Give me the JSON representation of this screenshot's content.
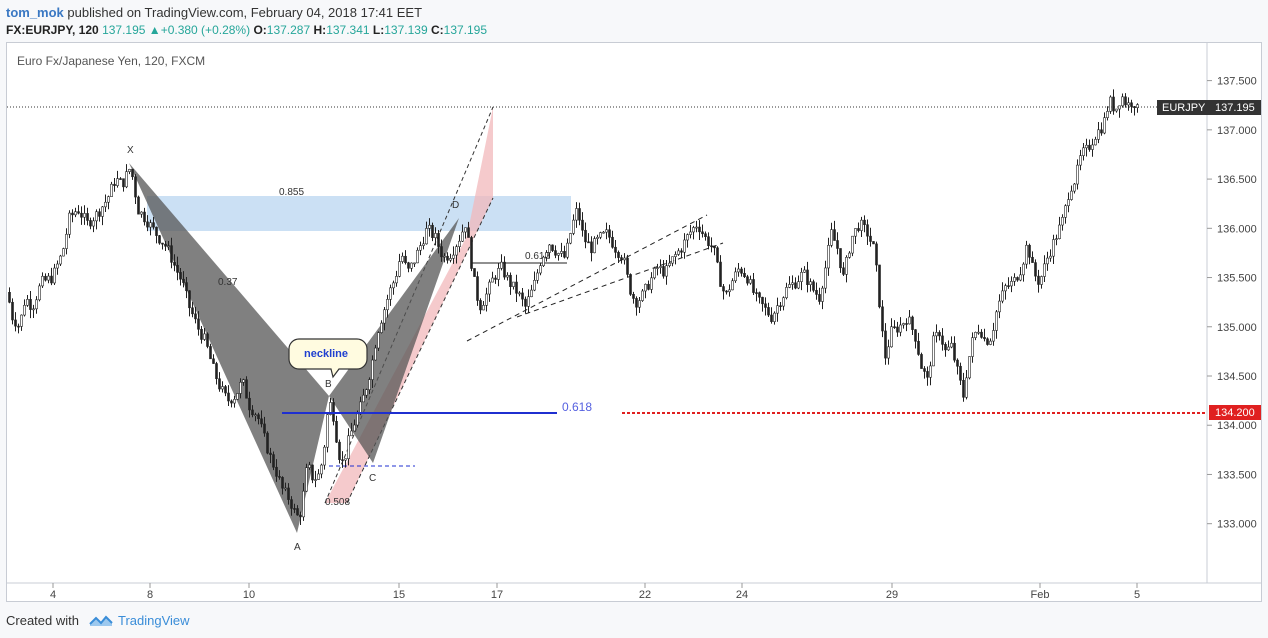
{
  "header": {
    "user": "tom_mok",
    "published": "published on TradingView.com, February 04, 2018 17:41 EET",
    "symbol": "FX:EURJPY, 120",
    "last": "137.195",
    "change": "+0.380 (+0.28%)",
    "open_label": "O:",
    "open": "137.287",
    "high_label": "H:",
    "high": "137.341",
    "low_label": "L:",
    "low": "137.139",
    "close_label": "C:",
    "close": "137.195"
  },
  "footer": {
    "created_with": "Created with",
    "brand": "TradingView"
  },
  "colors": {
    "up": "#26a69a",
    "pattern_dark": "#6b6b6b",
    "pattern_pink": "#f2b8bb",
    "zone_blue": "#b9d5f0",
    "fib_line": "#1f2fd0",
    "support": "#e02020",
    "price_tag": "#333333"
  },
  "chart_data": {
    "type": "candlestick",
    "title": "Euro Fx/Japanese Yen, 120, FXCM",
    "y_ticks": [
      "137.500",
      "137.000",
      "136.500",
      "136.000",
      "135.500",
      "135.000",
      "134.500",
      "134.000",
      "133.500",
      "133.000"
    ],
    "x_ticks": [
      "4",
      "8",
      "10",
      "15",
      "17",
      "22",
      "24",
      "29",
      "Feb",
      "5"
    ],
    "ylim": [
      132.55,
      137.75
    ],
    "last_price": {
      "label": "EURJPY",
      "value": "137.195"
    },
    "support": {
      "value": "134.200"
    },
    "pattern_points": {
      "X": "X",
      "A": "A",
      "B": "B",
      "C": "C",
      "D": "D"
    },
    "ratios": {
      "xb": "0.37",
      "ac": "0.508",
      "xd": "0.855",
      "fib": "0.618",
      "bd": "0.618"
    },
    "callout": "neckline",
    "price_path": [
      [
        0,
        135.35
      ],
      [
        5,
        135.1
      ],
      [
        12,
        135.0
      ],
      [
        18,
        135.3
      ],
      [
        25,
        135.2
      ],
      [
        34,
        135.45
      ],
      [
        45,
        135.5
      ],
      [
        55,
        135.75
      ],
      [
        62,
        136.1
      ],
      [
        70,
        136.2
      ],
      [
        80,
        136.05
      ],
      [
        90,
        136.15
      ],
      [
        100,
        136.3
      ],
      [
        108,
        136.5
      ],
      [
        115,
        136.45
      ],
      [
        122,
        136.6
      ],
      [
        126,
        136.5
      ],
      [
        130,
        136.2
      ],
      [
        138,
        136.1
      ],
      [
        145,
        136.0
      ],
      [
        152,
        135.9
      ],
      [
        160,
        135.8
      ],
      [
        168,
        135.6
      ],
      [
        175,
        135.45
      ],
      [
        182,
        135.2
      ],
      [
        190,
        135.0
      ],
      [
        198,
        134.85
      ],
      [
        205,
        134.6
      ],
      [
        212,
        134.4
      ],
      [
        220,
        134.25
      ],
      [
        228,
        134.3
      ],
      [
        235,
        134.45
      ],
      [
        242,
        134.2
      ],
      [
        250,
        134.1
      ],
      [
        256,
        133.9
      ],
      [
        262,
        133.7
      ],
      [
        268,
        133.55
      ],
      [
        275,
        133.35
      ],
      [
        282,
        133.25
      ],
      [
        288,
        133.1
      ],
      [
        292,
        133.05
      ],
      [
        296,
        133.3
      ],
      [
        300,
        133.6
      ],
      [
        306,
        133.45
      ],
      [
        312,
        133.5
      ],
      [
        316,
        133.7
      ],
      [
        320,
        134.1
      ],
      [
        324,
        134.25
      ],
      [
        328,
        133.95
      ],
      [
        332,
        133.7
      ],
      [
        336,
        133.6
      ],
      [
        340,
        133.8
      ],
      [
        346,
        134.0
      ],
      [
        352,
        134.15
      ],
      [
        358,
        134.35
      ],
      [
        364,
        134.6
      ],
      [
        370,
        134.95
      ],
      [
        376,
        135.15
      ],
      [
        382,
        135.35
      ],
      [
        388,
        135.5
      ],
      [
        394,
        135.75
      ],
      [
        400,
        135.55
      ],
      [
        406,
        135.65
      ],
      [
        412,
        135.8
      ],
      [
        420,
        136.0
      ],
      [
        428,
        135.9
      ],
      [
        436,
        135.7
      ],
      [
        444,
        135.75
      ],
      [
        452,
        135.9
      ],
      [
        458,
        136.05
      ],
      [
        462,
        135.8
      ],
      [
        466,
        135.5
      ],
      [
        472,
        135.2
      ],
      [
        478,
        135.3
      ],
      [
        486,
        135.5
      ],
      [
        494,
        135.6
      ],
      [
        502,
        135.45
      ],
      [
        510,
        135.35
      ],
      [
        518,
        135.2
      ],
      [
        526,
        135.4
      ],
      [
        534,
        135.7
      ],
      [
        542,
        135.85
      ],
      [
        550,
        135.75
      ],
      [
        558,
        135.7
      ],
      [
        564,
        136.0
      ],
      [
        570,
        136.2
      ],
      [
        576,
        135.9
      ],
      [
        584,
        135.8
      ],
      [
        592,
        135.9
      ],
      [
        600,
        135.95
      ],
      [
        608,
        135.8
      ],
      [
        616,
        135.7
      ],
      [
        622,
        135.4
      ],
      [
        628,
        135.25
      ],
      [
        634,
        135.3
      ],
      [
        642,
        135.45
      ],
      [
        650,
        135.6
      ],
      [
        658,
        135.55
      ],
      [
        666,
        135.7
      ],
      [
        674,
        135.8
      ],
      [
        682,
        135.95
      ],
      [
        690,
        136.05
      ],
      [
        698,
        135.9
      ],
      [
        706,
        135.8
      ],
      [
        712,
        135.5
      ],
      [
        718,
        135.3
      ],
      [
        724,
        135.45
      ],
      [
        732,
        135.6
      ],
      [
        740,
        135.5
      ],
      [
        748,
        135.3
      ],
      [
        756,
        135.2
      ],
      [
        764,
        135.1
      ],
      [
        772,
        135.25
      ],
      [
        780,
        135.4
      ],
      [
        788,
        135.45
      ],
      [
        796,
        135.55
      ],
      [
        804,
        135.4
      ],
      [
        812,
        135.3
      ],
      [
        818,
        135.6
      ],
      [
        824,
        135.95
      ],
      [
        830,
        135.8
      ],
      [
        836,
        135.5
      ],
      [
        844,
        135.9
      ],
      [
        852,
        136.05
      ],
      [
        860,
        135.95
      ],
      [
        866,
        135.8
      ],
      [
        870,
        135.5
      ],
      [
        874,
        135.0
      ],
      [
        878,
        134.7
      ],
      [
        884,
        134.95
      ],
      [
        892,
        135.0
      ],
      [
        900,
        135.1
      ],
      [
        908,
        134.9
      ],
      [
        914,
        134.6
      ],
      [
        920,
        134.45
      ],
      [
        926,
        134.85
      ],
      [
        932,
        134.95
      ],
      [
        938,
        134.75
      ],
      [
        944,
        134.8
      ],
      [
        950,
        134.55
      ],
      [
        956,
        134.3
      ],
      [
        960,
        134.6
      ],
      [
        966,
        134.9
      ],
      [
        972,
        135.0
      ],
      [
        978,
        134.85
      ],
      [
        984,
        134.9
      ],
      [
        990,
        135.2
      ],
      [
        998,
        135.4
      ],
      [
        1006,
        135.45
      ],
      [
        1014,
        135.6
      ],
      [
        1020,
        135.85
      ],
      [
        1026,
        135.55
      ],
      [
        1032,
        135.45
      ],
      [
        1040,
        135.7
      ],
      [
        1048,
        135.9
      ],
      [
        1056,
        136.1
      ],
      [
        1062,
        136.4
      ],
      [
        1068,
        136.5
      ],
      [
        1074,
        136.75
      ],
      [
        1080,
        136.8
      ],
      [
        1088,
        136.95
      ],
      [
        1096,
        137.05
      ],
      [
        1102,
        137.3
      ],
      [
        1108,
        137.2
      ],
      [
        1114,
        137.35
      ],
      [
        1120,
        137.25
      ],
      [
        1126,
        137.3
      ],
      [
        1130,
        137.2
      ]
    ]
  }
}
